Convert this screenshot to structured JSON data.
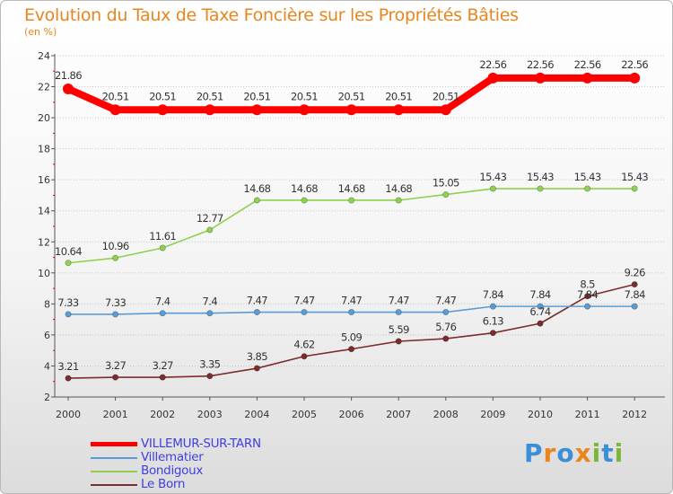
{
  "header": {
    "title": "Evolution du Taux de Taxe Foncière sur les Propriétés Bâties",
    "unit": "(en %)"
  },
  "logo": {
    "text": "Proxiti",
    "colors": [
      "#3a8fd8",
      "#e8851d",
      "#3a8fd8",
      "#e8851d",
      "#7ab83a",
      "#3a8fd8",
      "#7ab83a"
    ]
  },
  "chart_data": {
    "type": "line",
    "x": [
      2000,
      2001,
      2002,
      2003,
      2004,
      2005,
      2006,
      2007,
      2008,
      2009,
      2010,
      2011,
      2012
    ],
    "ylim": [
      2,
      24
    ],
    "yticks": [
      2,
      4,
      6,
      8,
      10,
      12,
      14,
      16,
      18,
      20,
      22,
      24
    ],
    "grid": "horizontal dotted",
    "legend_position": "bottom-left",
    "series": [
      {
        "name": "VILLEMUR-SUR-TARN",
        "color": "#ff0000",
        "values": [
          21.86,
          20.51,
          20.51,
          20.51,
          20.51,
          20.51,
          20.51,
          20.51,
          20.51,
          22.56,
          22.56,
          22.56,
          22.56
        ],
        "labels": [
          "21.86",
          "20.51",
          "20.51",
          "20.51",
          "20.51",
          "20.51",
          "20.51",
          "20.51",
          "20.51",
          "22.56",
          "22.56",
          "22.56",
          "22.56"
        ]
      },
      {
        "name": "Villematier",
        "color": "#5b9bd5",
        "values": [
          7.33,
          7.33,
          7.4,
          7.4,
          7.47,
          7.47,
          7.47,
          7.47,
          7.47,
          7.84,
          7.84,
          7.84,
          7.84
        ],
        "labels": [
          "7.33",
          "7.33",
          "7.4",
          "7.4",
          "7.47",
          "7.47",
          "7.47",
          "7.47",
          "7.47",
          "7.84",
          "7.84",
          "7.84",
          "7.84"
        ]
      },
      {
        "name": "Bondigoux",
        "color": "#90d050",
        "values": [
          10.64,
          10.96,
          11.61,
          12.77,
          14.68,
          14.68,
          14.68,
          14.68,
          15.05,
          15.43,
          15.43,
          15.43,
          15.43
        ],
        "labels": [
          "10.64",
          "10.96",
          "11.61",
          "12.77",
          "14.68",
          "14.68",
          "14.68",
          "14.68",
          "15.05",
          "15.43",
          "15.43",
          "15.43",
          "15.43"
        ]
      },
      {
        "name": "Le Born",
        "color": "#7b2c2c",
        "values": [
          3.21,
          3.27,
          3.27,
          3.35,
          3.85,
          4.62,
          5.09,
          5.59,
          5.76,
          6.13,
          6.74,
          8.5,
          9.26
        ],
        "labels": [
          "3.21",
          "3.27",
          "3.27",
          "3.35",
          "3.85",
          "4.62",
          "5.09",
          "5.59",
          "5.76",
          "6.13",
          "6.74",
          "8.5",
          "9.26"
        ]
      }
    ]
  }
}
